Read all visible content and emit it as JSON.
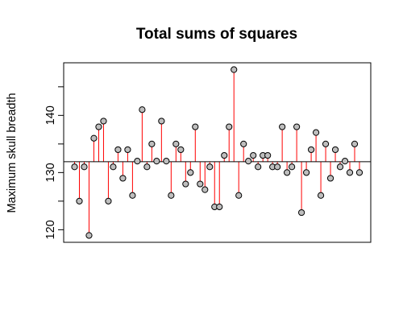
{
  "chart_data": {
    "type": "scatter",
    "title": "Total sums of squares",
    "xlabel": "",
    "ylabel": "Maximum skull breadth",
    "ylim": [
      117.8,
      149.2
    ],
    "yticks": [
      120,
      130,
      140
    ],
    "mean_line": 131.9,
    "colors": {
      "point_fill": "#bebebe",
      "point_stroke": "#000000",
      "segment": "#ff0000",
      "axis": "#000000",
      "background": "#ffffff"
    },
    "values": [
      131,
      125,
      131,
      119,
      136,
      138,
      139,
      125,
      131,
      134,
      129,
      134,
      126,
      132,
      141,
      131,
      135,
      132,
      139,
      132,
      126,
      135,
      134,
      128,
      130,
      138,
      128,
      127,
      131,
      124,
      124,
      133,
      138,
      148,
      126,
      135,
      132,
      133,
      131,
      133,
      133,
      131,
      131,
      138,
      130,
      131,
      138,
      123,
      130,
      134,
      137,
      126,
      135,
      129,
      134,
      131,
      132,
      130,
      135,
      130
    ]
  }
}
